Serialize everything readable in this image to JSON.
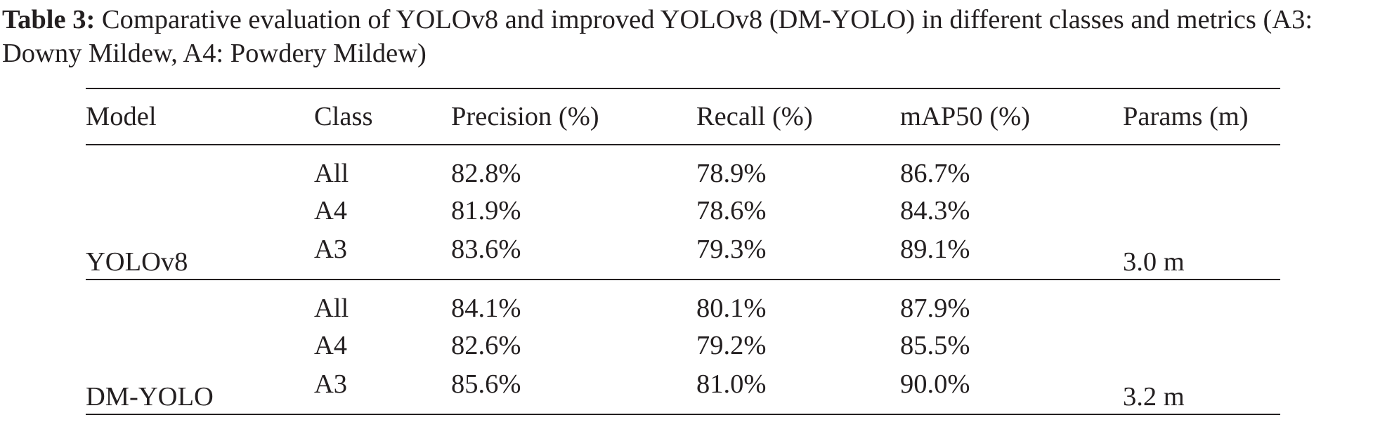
{
  "caption": {
    "label": "Table 3:",
    "text": " Comparative evaluation of YOLOv8 and improved YOLOv8 (DM-YOLO) in different classes and metrics (A3: Downy Mildew, A4: Powdery Mildew)"
  },
  "table": {
    "headers": {
      "model": "Model",
      "class": "Class",
      "precision": "Precision (%)",
      "recall": "Recall (%)",
      "map50": "mAP50 (%)",
      "params": "Params (m)"
    },
    "groups": [
      {
        "model": "YOLOv8",
        "params": "3.0 m",
        "rows": [
          {
            "class": "All",
            "precision": "82.8%",
            "recall": "78.9%",
            "map50": "86.7%"
          },
          {
            "class": "A4",
            "precision": "81.9%",
            "recall": "78.6%",
            "map50": "84.3%"
          },
          {
            "class": "A3",
            "precision": "83.6%",
            "recall": "79.3%",
            "map50": "89.1%"
          }
        ]
      },
      {
        "model": "DM-YOLO",
        "params": "3.2 m",
        "rows": [
          {
            "class": "All",
            "precision": "84.1%",
            "recall": "80.1%",
            "map50": "87.9%"
          },
          {
            "class": "A4",
            "precision": "82.6%",
            "recall": "79.2%",
            "map50": "85.5%"
          },
          {
            "class": "A3",
            "precision": "85.6%",
            "recall": "81.0%",
            "map50": "90.0%"
          }
        ]
      }
    ]
  }
}
